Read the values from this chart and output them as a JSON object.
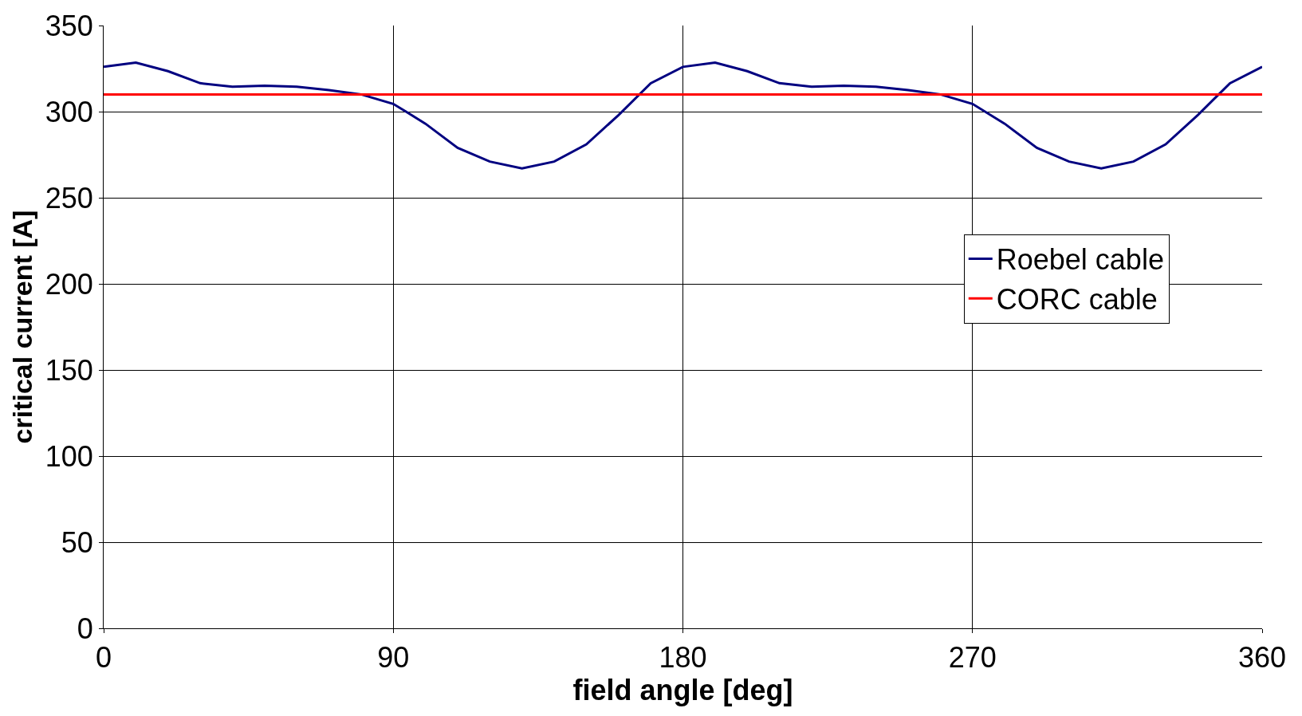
{
  "chart_data": {
    "type": "line",
    "xlabel": "field angle [deg]",
    "ylabel": "critical current [A]",
    "xlim": [
      0,
      360
    ],
    "xticks": [
      0,
      90,
      180,
      270,
      360
    ],
    "ylim": [
      0,
      350
    ],
    "yticks": [
      0,
      50,
      100,
      150,
      200,
      250,
      300,
      350
    ],
    "grid": true,
    "legend": "right",
    "marker": "none",
    "line_style": "solid",
    "x": [
      0,
      10,
      20,
      30,
      40,
      50,
      60,
      70,
      80,
      90,
      100,
      110,
      120,
      130,
      140,
      150,
      160,
      170,
      180,
      190,
      200,
      210,
      220,
      230,
      240,
      250,
      260,
      270,
      280,
      290,
      300,
      310,
      320,
      330,
      340,
      350,
      360
    ],
    "series": [
      {
        "name": "Roebel cable",
        "color": "#000080",
        "values": [
          326,
          328.5,
          323.5,
          316.5,
          314.5,
          315,
          314.5,
          312.5,
          310,
          304.5,
          293,
          279,
          271,
          267,
          271,
          281,
          298,
          316.5,
          326,
          328.5,
          323.5,
          316.5,
          314.5,
          315,
          314.5,
          312.5,
          310,
          304.5,
          293,
          279,
          271,
          267,
          271,
          281,
          298,
          316.5,
          326
        ]
      },
      {
        "name": "CORC cable",
        "color": "#ff0000",
        "x": [
          0,
          360
        ],
        "values": [
          310,
          310
        ]
      }
    ]
  }
}
